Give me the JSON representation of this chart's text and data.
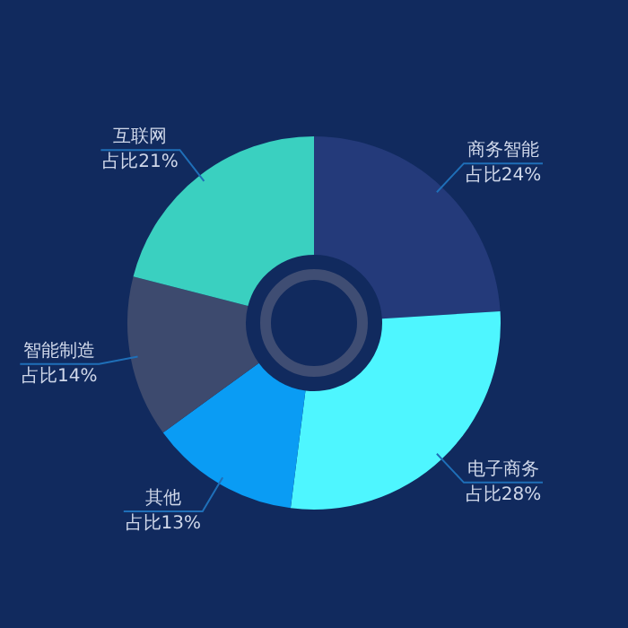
{
  "chart_data": {
    "type": "donut",
    "categories": [
      "商务智能",
      "电子商务",
      "其他",
      "智能制造",
      "互联网"
    ],
    "values": [
      24,
      28,
      13,
      14,
      21
    ],
    "colors": [
      "#243a7a",
      "#4ef6ff",
      "#0a9cf4",
      "#3d4a6e",
      "#3ad0c0"
    ],
    "value_labels": [
      "占比24%",
      "占比28%",
      "占比13%",
      "占比14%",
      "占比21%"
    ],
    "legend": false
  }
}
